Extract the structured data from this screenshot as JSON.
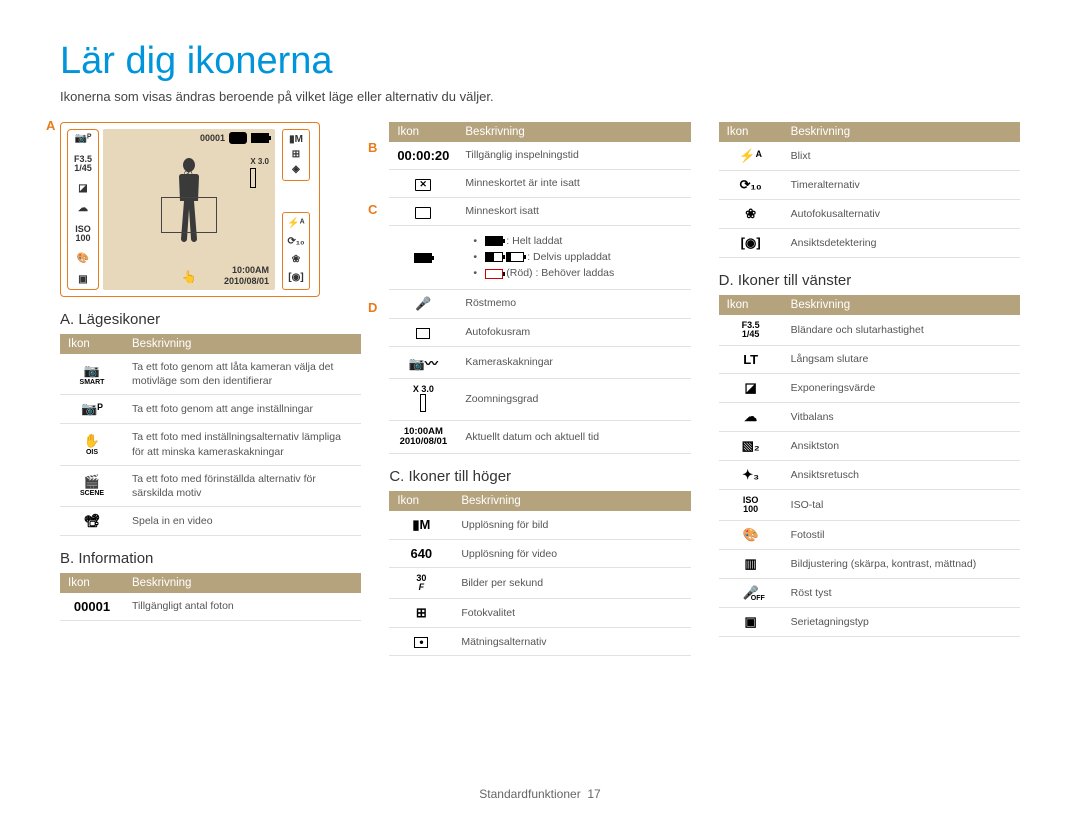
{
  "title": "Lär dig ikonerna",
  "subtitle": "Ikonerna som visas ändras beroende på vilket läge eller alternativ du väljer.",
  "markers": {
    "a": "A",
    "b": "B",
    "c": "C",
    "d": "D"
  },
  "diagram": {
    "counter": "00001",
    "zoom": "X 3.0",
    "time": "10:00AM",
    "date": "2010/08/01",
    "left_icons": [
      "📷ᴾ",
      "F3.5\n1/45",
      "◪",
      "☁",
      "ISO\n100",
      "🎨",
      "▣"
    ],
    "rgroup1": [
      "▮M",
      "⊞",
      "◈"
    ],
    "rgroup2": [
      "⚡ᴬ",
      "⟳₁₀",
      "❀",
      "[◉]"
    ]
  },
  "sections": {
    "a": {
      "heading": "A. Lägesikoner",
      "col_icon": "Ikon",
      "col_desc": "Beskrivning",
      "rows": [
        {
          "icon": "📷",
          "sub": "SMART",
          "desc": "Ta ett foto genom att låta kameran välja det motivläge som den identifierar"
        },
        {
          "icon": "📷ᴾ",
          "desc": "Ta ett foto genom att ange inställningar"
        },
        {
          "icon": "✋",
          "sub": "OIS",
          "desc": "Ta ett foto med inställningsalternativ lämpliga för att minska kameraskakningar"
        },
        {
          "icon": "🎬",
          "sub": "SCENE",
          "desc": "Ta ett foto med förinställda alternativ för särskilda motiv"
        },
        {
          "icon": "📽",
          "desc": "Spela in en video"
        }
      ]
    },
    "b": {
      "heading": "B. Information",
      "col_icon": "Ikon",
      "col_desc": "Beskrivning",
      "rows": [
        {
          "icon": "00001",
          "desc": "Tillgängligt antal foton"
        }
      ]
    },
    "b2": {
      "col_icon": "Ikon",
      "col_desc": "Beskrivning",
      "rows": [
        {
          "icon": "00:00:20",
          "desc": "Tillgänglig inspelningstid"
        },
        {
          "icon": "sdx",
          "desc": "Minneskortet är inte isatt"
        },
        {
          "icon": "sd",
          "desc": "Minneskort isatt"
        },
        {
          "icon": "batt",
          "desc_list": [
            {
              "pre": "full",
              "txt": ": Helt laddat"
            },
            {
              "pre": "half2",
              "txt": ": Delvis uppladdat"
            },
            {
              "pre": "red",
              "txt": "(Röd) :  Behöver laddas"
            }
          ]
        },
        {
          "icon": "🎤",
          "desc": "Röstmemo"
        },
        {
          "icon": "af",
          "desc": "Autofokusram"
        },
        {
          "icon": "📷〰",
          "desc": "Kameraskakningar"
        },
        {
          "icon": "zoom",
          "desc": "Zoomningsgrad"
        },
        {
          "icon": "time",
          "desc": "Aktuellt datum och aktuell tid"
        }
      ]
    },
    "c": {
      "heading": "C. Ikoner till höger",
      "col_icon": "Ikon",
      "col_desc": "Beskrivning",
      "rows": [
        {
          "icon": "▮M",
          "desc": "Upplösning för bild"
        },
        {
          "icon": "640",
          "desc": "Upplösning för video"
        },
        {
          "icon": "30/F",
          "desc": "Bilder per sekund"
        },
        {
          "icon": "⊞",
          "desc": "Fotokvalitet"
        },
        {
          "icon": "mtr",
          "desc": "Mätningsalternativ"
        }
      ]
    },
    "dtop": {
      "col_icon": "Ikon",
      "col_desc": "Beskrivning",
      "rows": [
        {
          "icon": "⚡ᴬ",
          "desc": "Blixt"
        },
        {
          "icon": "⟳₁₀",
          "desc": "Timeralternativ"
        },
        {
          "icon": "❀",
          "desc": "Autofokusalternativ"
        },
        {
          "icon": "[◉]",
          "desc": "Ansiktsdetektering"
        }
      ]
    },
    "d": {
      "heading": "D. Ikoner till vänster",
      "col_icon": "Ikon",
      "col_desc": "Beskrivning",
      "rows": [
        {
          "icon": "F3.5\n1/45",
          "desc": "Bländare och slutarhastighet"
        },
        {
          "icon": "LT",
          "desc": "Långsam slutare"
        },
        {
          "icon": "◪",
          "desc": "Exponeringsvärde"
        },
        {
          "icon": "☁",
          "desc": "Vitbalans"
        },
        {
          "icon": "▧₂",
          "desc": "Ansiktston"
        },
        {
          "icon": "✦₃",
          "desc": "Ansiktsretusch"
        },
        {
          "icon": "ISO\n100",
          "desc": "ISO-tal"
        },
        {
          "icon": "🎨",
          "desc": "Fotostil"
        },
        {
          "icon": "▥",
          "desc": "Bildjustering (skärpa, kontrast, mättnad)"
        },
        {
          "icon": "🎤off",
          "desc": "Röst tyst"
        },
        {
          "icon": "▣",
          "desc": "Serietagningstyp"
        }
      ]
    }
  },
  "footer": {
    "section": "Standardfunktioner",
    "page": "17"
  },
  "colors": {
    "accent": "#0095da",
    "orange": "#e87b1e",
    "thead": "#b5a37e"
  }
}
